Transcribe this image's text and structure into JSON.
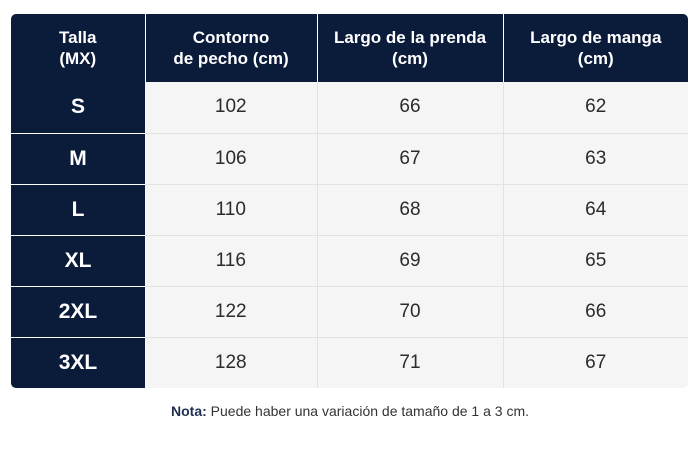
{
  "table": {
    "headers": [
      "Talla\n(MX)",
      "Contorno\nde pecho (cm)",
      "Largo de la prenda\n(cm)",
      "Largo de manga\n(cm)"
    ],
    "rows": [
      {
        "size": "S",
        "chest": "102",
        "length": "66",
        "sleeve": "62"
      },
      {
        "size": "M",
        "chest": "106",
        "length": "67",
        "sleeve": "63"
      },
      {
        "size": "L",
        "chest": "110",
        "length": "68",
        "sleeve": "64"
      },
      {
        "size": "XL",
        "chest": "116",
        "length": "69",
        "sleeve": "65"
      },
      {
        "size": "2XL",
        "chest": "122",
        "length": "70",
        "sleeve": "66"
      },
      {
        "size": "3XL",
        "chest": "128",
        "length": "71",
        "sleeve": "67"
      }
    ]
  },
  "note": {
    "label": "Nota:",
    "text": " Puede haber una variación de tamaño de 1 a 3 cm."
  },
  "colors": {
    "header_bg": "#0b1b3a",
    "cell_bg": "#f5f5f5",
    "text": "#2b2b2b"
  }
}
